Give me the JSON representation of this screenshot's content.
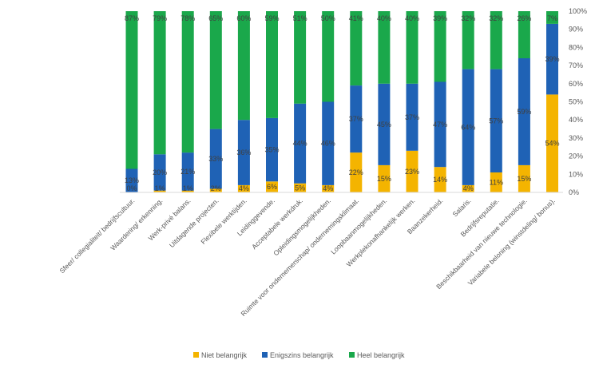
{
  "chart_data": {
    "type": "bar",
    "stacked": true,
    "percent": true,
    "categories": [
      "Sfeer/ collegialiteit/ bedrijfscultuur.",
      "Waardering/ erkenning.",
      "Werk-privé balans.",
      "Uitdagende projecten.",
      "Flexibele werktijden.",
      "Leidinggevende.",
      "Acceptabele werkdruk.",
      "Opleidingsmogelijkheden.",
      "Ruimte voor ondernemerschap/ ondernemingsklimaat.",
      "Loopbaanmogelijkheden.",
      "Werkplekonafhankelijk werken.",
      "Baanzekerheid.",
      "Salaris.",
      "Bedrijfsreputatie.",
      "Beschikbaarheid van nieuwe technologie.",
      "Variabele beloning (winstdeling/ bonus)."
    ],
    "series": [
      {
        "name": "Niet belangrijk",
        "color": "#F4B400",
        "values": [
          0,
          1,
          1,
          2,
          4,
          6,
          5,
          4,
          22,
          15,
          23,
          14,
          4,
          11,
          15,
          54
        ],
        "labels": [
          "0%",
          "1%",
          "1%",
          "2%",
          "4%",
          "6%",
          "5%",
          "4%",
          "22%",
          "15%",
          "23%",
          "14%",
          "4%",
          "11%",
          "15%",
          "54%"
        ]
      },
      {
        "name": "Enigszins belangrijk",
        "color": "#1F62B5",
        "values": [
          13,
          20,
          21,
          33,
          36,
          35,
          44,
          46,
          37,
          45,
          37,
          47,
          64,
          57,
          59,
          39
        ],
        "labels": [
          "13%",
          "20%",
          "21%",
          "33%",
          "36%",
          "35%",
          "44%",
          "46%",
          "37%",
          "45%",
          "37%",
          "47%",
          "64%",
          "57%",
          "59%",
          "39%"
        ]
      },
      {
        "name": "Heel belangrijk",
        "color": "#1AA84B",
        "values": [
          87,
          79,
          78,
          65,
          60,
          59,
          51,
          50,
          41,
          40,
          40,
          39,
          32,
          32,
          26,
          7
        ],
        "labels": [
          "87%",
          "79%",
          "78%",
          "65%",
          "60%",
          "59%",
          "51%",
          "50%",
          "41%",
          "40%",
          "40%",
          "39%",
          "32%",
          "32%",
          "26%",
          "7%"
        ]
      }
    ],
    "y_ticks": [
      "0%",
      "10%",
      "20%",
      "30%",
      "40%",
      "50%",
      "60%",
      "70%",
      "80%",
      "90%",
      "100%"
    ],
    "ylim": [
      0,
      100
    ],
    "y_axis_position": "right",
    "grid": false,
    "legend_position": "bottom"
  }
}
